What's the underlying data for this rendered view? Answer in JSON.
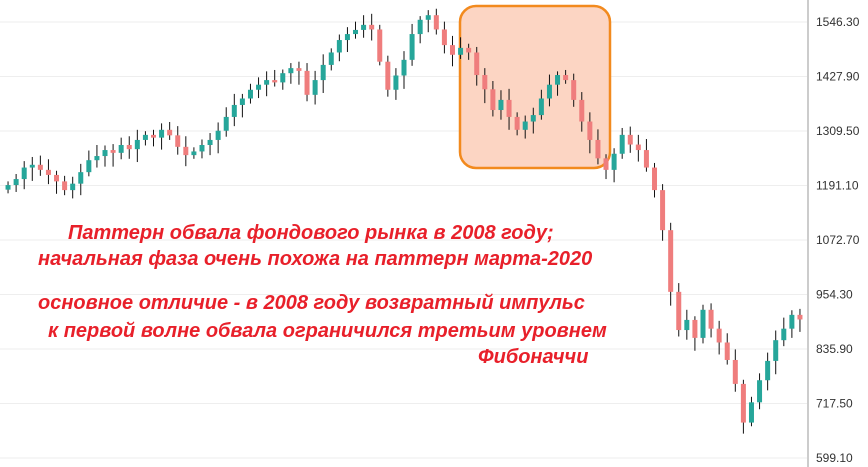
{
  "chart_data": {
    "type": "candlestick",
    "title": "",
    "ylim": [
      579.5,
      1594
    ],
    "y_ticks": [
      "1546.30",
      "1427.90",
      "1309.50",
      "1191.10",
      "1072.70",
      "954.30",
      "835.90",
      "717.50",
      "599.10"
    ],
    "y_tick_values": [
      1546.3,
      1427.9,
      1309.5,
      1191.1,
      1072.7,
      954.3,
      835.9,
      717.5,
      599.1
    ],
    "grid": true,
    "colors": {
      "up": "#26a69a",
      "down": "#ef7d7d",
      "highlight_border": "#f28a1e",
      "highlight_fill": "#fcd5c3"
    },
    "closes": [
      1192,
      1205,
      1230,
      1236,
      1225,
      1214,
      1200,
      1181,
      1195,
      1220,
      1246,
      1255,
      1268,
      1262,
      1279,
      1270,
      1290,
      1301,
      1295,
      1312,
      1300,
      1275,
      1257,
      1265,
      1279,
      1290,
      1310,
      1340,
      1366,
      1380,
      1399,
      1410,
      1420,
      1415,
      1435,
      1446,
      1440,
      1388,
      1420,
      1453,
      1480,
      1507,
      1520,
      1529,
      1540,
      1530,
      1460,
      1399,
      1430,
      1464,
      1520,
      1551,
      1561,
      1530,
      1496,
      1475,
      1490,
      1480,
      1431,
      1400,
      1355,
      1377,
      1340,
      1312,
      1330,
      1344,
      1380,
      1410,
      1431,
      1420,
      1377,
      1330,
      1290,
      1250,
      1225,
      1260,
      1301,
      1280,
      1268,
      1230,
      1181,
      1094,
      960,
      877,
      899,
      860,
      921,
      880,
      850,
      812,
      760,
      676,
      720,
      768,
      810,
      855,
      880,
      910,
      900
    ],
    "annotations": [
      "Паттерн обвала фондового рынка в 2008 году;",
      "начальная фаза очень похожа на паттерн марта-2020",
      "основное отличие - в 2008 году возвратный импульс",
      "к первой волне обвала ограничился третьим уровнем",
      "Фибоначчи"
    ]
  }
}
